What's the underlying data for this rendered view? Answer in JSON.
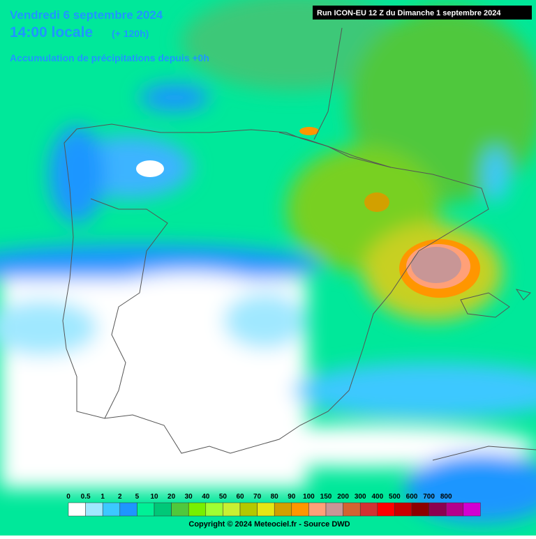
{
  "header": {
    "date": "Vendredi 6 septembre 2024",
    "time": "14:00 locale",
    "lead": "(+ 120h)",
    "subtitle": "Accumulation de précipitations depuis +0h",
    "run": "Run ICON-EU 12 Z du Dimanche 1 septembre 2024"
  },
  "legend": {
    "items": [
      {
        "label": "0",
        "color": "#ffffff"
      },
      {
        "label": "0.5",
        "color": "#a0e8ff"
      },
      {
        "label": "1",
        "color": "#3cc8ff"
      },
      {
        "label": "2",
        "color": "#1e96ff"
      },
      {
        "label": "5",
        "color": "#00f096"
      },
      {
        "label": "10",
        "color": "#00c878"
      },
      {
        "label": "20",
        "color": "#50c83c"
      },
      {
        "label": "30",
        "color": "#78f000"
      },
      {
        "label": "40",
        "color": "#a0ff32"
      },
      {
        "label": "50",
        "color": "#c8f032"
      },
      {
        "label": "60",
        "color": "#b4c800"
      },
      {
        "label": "70",
        "color": "#e6e614"
      },
      {
        "label": "80",
        "color": "#d2a000"
      },
      {
        "label": "90",
        "color": "#ff9600"
      },
      {
        "label": "100",
        "color": "#ffa078"
      },
      {
        "label": "150",
        "color": "#c89696"
      },
      {
        "label": "200",
        "color": "#d26432"
      },
      {
        "label": "300",
        "color": "#d23232"
      },
      {
        "label": "400",
        "color": "#ff0000"
      },
      {
        "label": "500",
        "color": "#c80000"
      },
      {
        "label": "600",
        "color": "#8c0000"
      },
      {
        "label": "700",
        "color": "#8c0050"
      },
      {
        "label": "800",
        "color": "#b4008c"
      }
    ],
    "last_color": "#d200d2"
  },
  "footer": {
    "copyright": "Copyright © 2024 Meteociel.fr - Source DWD"
  }
}
